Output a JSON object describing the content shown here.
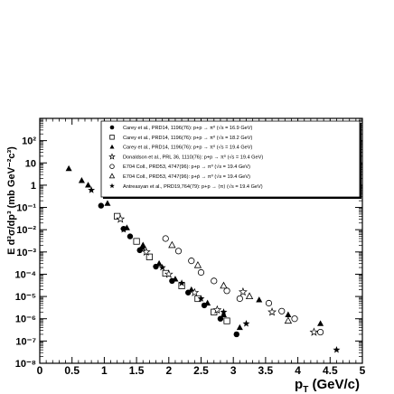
{
  "chart_data": {
    "type": "scatter",
    "xlabel": "p",
    "xlabel_sub": "T",
    "xlabel_unit": " (GeV/c)",
    "ylabel": "E d³σ/dp³ (mb GeV⁻²c³)",
    "xlim": [
      0,
      5
    ],
    "ylim_log10": [
      -8,
      3
    ],
    "yscale": "log",
    "x_ticks": [
      "0",
      "0.5",
      "1",
      "1.5",
      "2",
      "2.5",
      "3",
      "3.5",
      "4",
      "4.5",
      "5"
    ],
    "y_ticks": [
      "10⁻⁸",
      "10⁻⁷",
      "10⁻⁶",
      "10⁻⁵",
      "10⁻⁴",
      "10⁻³",
      "10⁻²",
      "10⁻¹",
      "1",
      "10",
      "10²"
    ],
    "legend_position": "top-right",
    "series": [
      {
        "name": "Carey et al., PRD14, 1196(76): p+p → π⁰ (√s = 16.9 GeV)",
        "marker": "filled-circle",
        "points": [
          [
            0.95,
            0.12
          ],
          [
            1.3,
            0.011
          ],
          [
            1.4,
            0.005
          ],
          [
            1.55,
            0.0012
          ],
          [
            1.8,
            0.00022
          ],
          [
            2.05,
            5e-05
          ],
          [
            2.3,
            1.5e-05
          ],
          [
            2.55,
            4e-06
          ],
          [
            2.8,
            1e-06
          ],
          [
            3.05,
            2e-07
          ]
        ]
      },
      {
        "name": "Carey et al., PRD14, 1196(76): p+p → π⁰ (√s = 18.2 GeV)",
        "marker": "open-square",
        "points": [
          [
            1.2,
            0.04
          ],
          [
            1.5,
            0.003
          ],
          [
            1.7,
            0.0006
          ],
          [
            1.95,
            0.00011
          ],
          [
            2.2,
            3e-05
          ],
          [
            2.45,
            8e-06
          ],
          [
            2.7,
            2e-06
          ],
          [
            2.9,
            8e-07
          ]
        ]
      },
      {
        "name": "Carey et al., PRD14, 1196(76): p+p → π⁰ (√s = 19.4 GeV)",
        "marker": "filled-triangle",
        "points": [
          [
            0.45,
            5.5
          ],
          [
            0.65,
            1.6
          ],
          [
            0.75,
            1.0
          ],
          [
            1.05,
            0.15
          ],
          [
            1.35,
            0.012
          ],
          [
            1.6,
            0.002
          ],
          [
            1.85,
            0.0003
          ],
          [
            2.1,
            6e-05
          ],
          [
            2.35,
            2e-05
          ],
          [
            2.6,
            5e-06
          ],
          [
            2.85,
            1.5e-06
          ],
          [
            3.1,
            4e-07
          ],
          [
            3.4,
            7e-06
          ],
          [
            3.85,
            1.5e-06
          ],
          [
            4.35,
            6e-07
          ]
        ]
      },
      {
        "name": "Donaldson et al., PRL 36, 1110(76): p+p → π⁰ (√s = 19.4 GeV)",
        "marker": "open-star",
        "points": [
          [
            1.25,
            0.03
          ],
          [
            1.65,
            0.001
          ],
          [
            2.0,
            0.0001
          ],
          [
            2.4,
            1.5e-05
          ],
          [
            2.75,
            2.5e-06
          ],
          [
            3.15,
            1.6e-05
          ],
          [
            3.6,
            2e-06
          ],
          [
            4.25,
            2.5e-07
          ]
        ]
      },
      {
        "name": "E704 Coll., PRD53, 4747(96): p+p → π⁰ (√s = 19.4 GeV)",
        "marker": "open-circle",
        "points": [
          [
            1.95,
            0.004
          ],
          [
            2.15,
            0.0011
          ],
          [
            2.35,
            0.0004
          ],
          [
            2.5,
            0.00012
          ],
          [
            2.7,
            5e-05
          ],
          [
            2.9,
            1.8e-05
          ],
          [
            3.1,
            8e-06
          ],
          [
            3.55,
            5e-06
          ],
          [
            3.75,
            2.2e-06
          ],
          [
            3.95,
            1e-06
          ],
          [
            4.35,
            2.5e-07
          ]
        ]
      },
      {
        "name": "E704 Coll., PRD53, 4747(96): p+p̄ → π⁰ (√s = 19.4 GeV)",
        "marker": "open-triangle",
        "points": [
          [
            2.05,
            0.002
          ],
          [
            2.45,
            0.00025
          ],
          [
            2.85,
            3e-05
          ],
          [
            3.25,
            1e-05
          ],
          [
            3.85,
            8e-07
          ]
        ]
      },
      {
        "name": "Antreasyan et al., PRD19,764(79): p+p → ⟨π⟩ (√s = 19.4 GeV)",
        "marker": "filled-star",
        "points": [
          [
            0.8,
            0.6
          ],
          [
            1.3,
            0.01
          ],
          [
            1.6,
            0.0015
          ],
          [
            1.9,
            0.0002
          ],
          [
            2.2,
            4e-05
          ],
          [
            2.5,
            8e-06
          ],
          [
            2.85,
            2e-06
          ],
          [
            3.2,
            6e-07
          ],
          [
            4.6,
            4e-08
          ]
        ]
      }
    ]
  }
}
